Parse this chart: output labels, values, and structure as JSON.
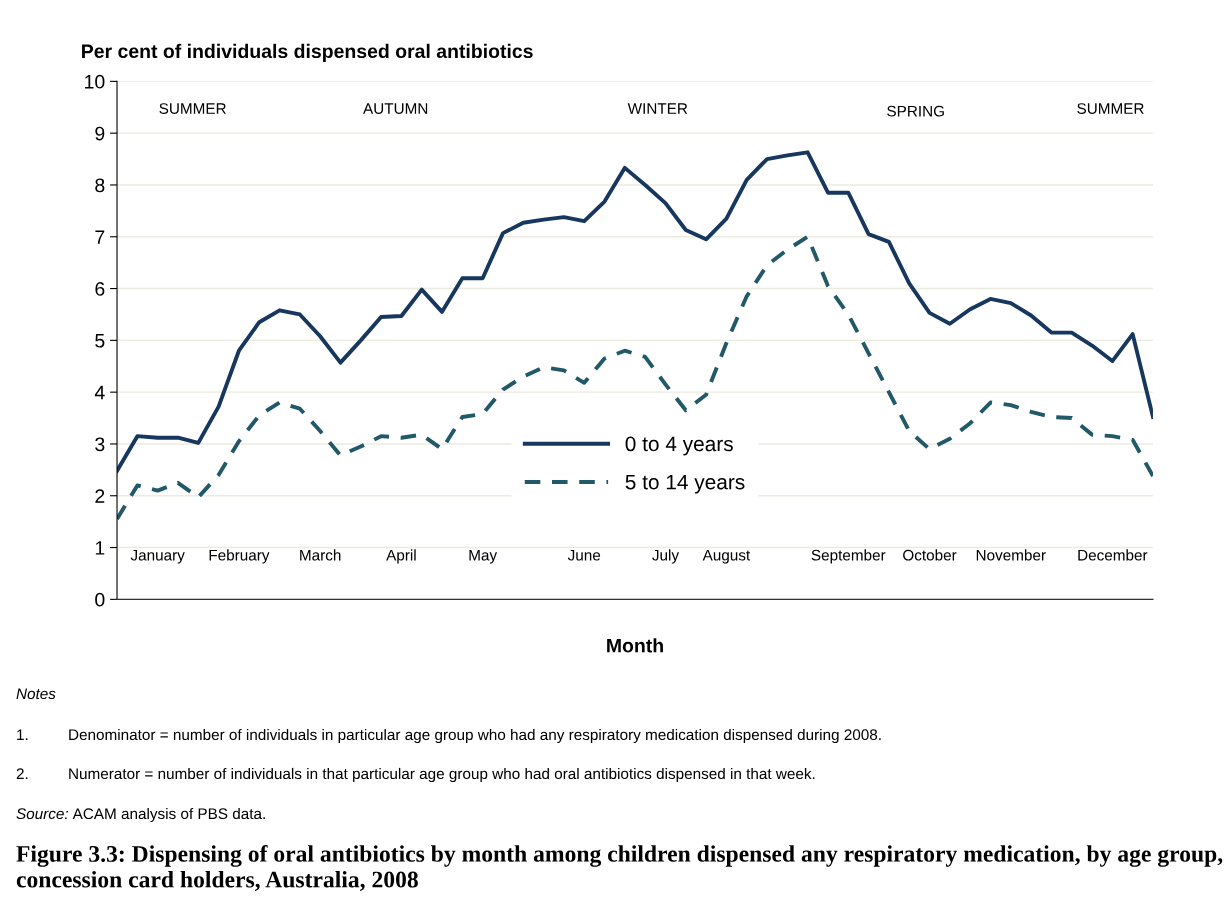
{
  "chart_data": {
    "type": "line",
    "title": "Figure 3.3: Dispensing of oral antibiotics by month among children dispensed any respiratory medication, by age group, concession card holders, Australia, 2008",
    "ylabel": "Per cent of individuals dispensed oral antibiotics",
    "xlabel": "Month",
    "categories": [
      null,
      null,
      "January",
      null,
      null,
      null,
      "February",
      null,
      null,
      null,
      "March",
      null,
      null,
      null,
      "April",
      null,
      null,
      null,
      "May",
      null,
      null,
      null,
      null,
      "June",
      null,
      null,
      null,
      "July",
      null,
      null,
      "August",
      null,
      null,
      null,
      null,
      null,
      "September",
      null,
      null,
      null,
      "October",
      null,
      null,
      null,
      "November",
      null,
      null,
      null,
      null,
      "December",
      null,
      null
    ],
    "series": [
      {
        "name": "0 to 4 years",
        "color": "#17375e",
        "line_style": "solid",
        "values": [
          2.48,
          3.15,
          3.12,
          3.12,
          3.02,
          3.72,
          4.8,
          5.35,
          5.58,
          5.5,
          5.08,
          4.57,
          5.0,
          5.45,
          5.47,
          5.98,
          5.55,
          6.2,
          6.2,
          7.07,
          7.27,
          7.33,
          7.38,
          7.3,
          7.68,
          8.33,
          8.0,
          7.65,
          7.13,
          6.95,
          7.35,
          8.1,
          8.5,
          8.57,
          8.63,
          7.85,
          7.85,
          7.05,
          6.9,
          6.1,
          5.53,
          5.32,
          5.6,
          5.8,
          5.72,
          5.48,
          5.15,
          5.15,
          4.9,
          4.6,
          5.12,
          3.52
        ]
      },
      {
        "name": "5 to 14 years",
        "color": "#215968",
        "line_style": "dashed",
        "values": [
          1.55,
          2.2,
          2.1,
          2.25,
          1.97,
          2.4,
          3.05,
          3.55,
          3.8,
          3.68,
          3.25,
          2.78,
          2.95,
          3.15,
          3.12,
          3.18,
          2.9,
          3.52,
          3.58,
          4.05,
          4.3,
          4.48,
          4.42,
          4.18,
          4.65,
          4.8,
          4.68,
          4.15,
          3.65,
          3.95,
          4.95,
          5.85,
          6.45,
          6.75,
          7.0,
          6.05,
          5.5,
          4.75,
          4.0,
          3.25,
          2.9,
          3.1,
          3.4,
          3.8,
          3.75,
          3.62,
          3.52,
          3.5,
          3.18,
          3.15,
          3.08,
          2.38
        ]
      }
    ],
    "ylim": [
      0,
      10
    ],
    "yticks": [
      0,
      1,
      2,
      3,
      4,
      5,
      6,
      7,
      8,
      9,
      10
    ],
    "grid": "y",
    "legend": "bottom",
    "marker": "none",
    "annotations": [
      "SUMMER",
      "AUTUMN",
      "WINTER",
      "SPRING",
      "SUMMER",
      "Notes",
      "1. Denominator = number of individuals in particular age group who had any respiratory medication dispensed during 2008.",
      "2. Numerator = number of individuals in that particular age group who had oral antibiotics dispensed in that week.",
      "Source: ACAM analysis of PBS data."
    ]
  }
}
